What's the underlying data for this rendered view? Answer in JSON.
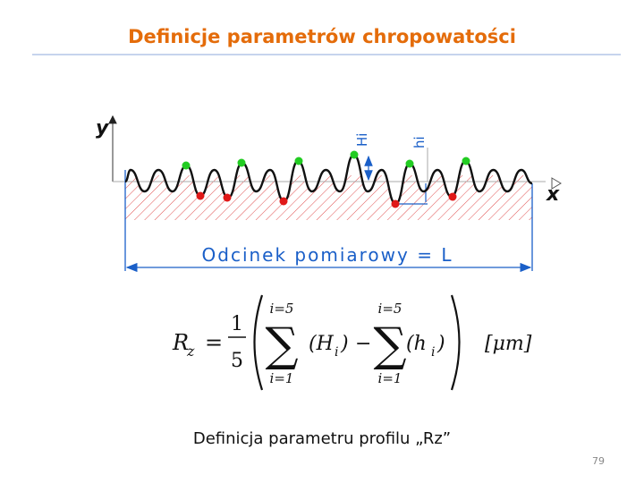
{
  "header": {
    "title": "Definicje parametrów chropowatości"
  },
  "diagram": {
    "y_label": "y",
    "x_label": "x",
    "peak_label": "Hi",
    "valley_label": "hi",
    "length_label": "Odcinek pomiarowy = L"
  },
  "formula": {
    "lhs": "R",
    "lhs_sub": "z",
    "equals": "=",
    "numerator": "1",
    "denominator": "5",
    "sum1_upper": "i=5",
    "sum1_symbol": "∑",
    "sum1_lower": "i=1",
    "term1": "(H",
    "term1_sub": "i",
    "term1_close": ")",
    "minus": "−",
    "sum2_upper": "i=5",
    "sum2_symbol": "∑",
    "sum2_lower": "i=1",
    "term2": "(h",
    "term2_sub": "i",
    "term2_close": ")",
    "unit": "[μm]"
  },
  "caption": "Definicja parametru profilu „Rz”",
  "page_number": 79
}
